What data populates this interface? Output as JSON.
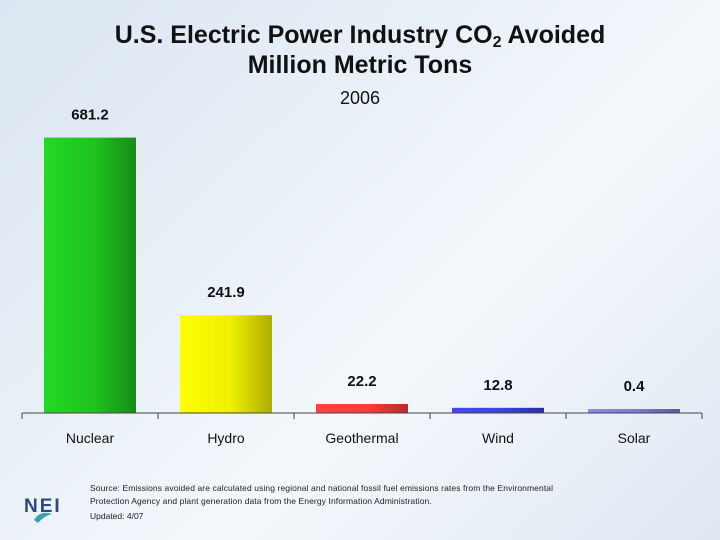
{
  "title": {
    "line1_pre": "U.S. Electric Power Industry CO",
    "line1_sub": "2",
    "line1_post": " Avoided",
    "line2": "Million Metric Tons"
  },
  "subtitle": "2006",
  "chart_data": {
    "type": "bar",
    "title": "U.S. Electric Power Industry CO2 Avoided Million Metric Tons",
    "subtitle": "2006",
    "categories": [
      "Nuclear",
      "Hydro",
      "Geothermal",
      "Wind",
      "Solar"
    ],
    "values": [
      681.2,
      241.9,
      22.2,
      12.8,
      0.4
    ],
    "data_labels": [
      "681.2",
      "241.9",
      "22.2",
      "12.8",
      "0.4"
    ],
    "colors": [
      "#1fc21f",
      "#f0f000",
      "#ff3b3b",
      "#3f3fe0",
      "#7a7ad6"
    ],
    "xlabel": "",
    "ylabel": "",
    "ylim": [
      0,
      700
    ],
    "grid": false
  },
  "footer": {
    "source": "Source: Emissions avoided are calculated using regional and national fossil fuel emissions rates from the Environmental Protection Agency and plant generation data from the Energy Information Administration.",
    "updated": "Updated: 4/07",
    "logo_text": "NEI"
  }
}
